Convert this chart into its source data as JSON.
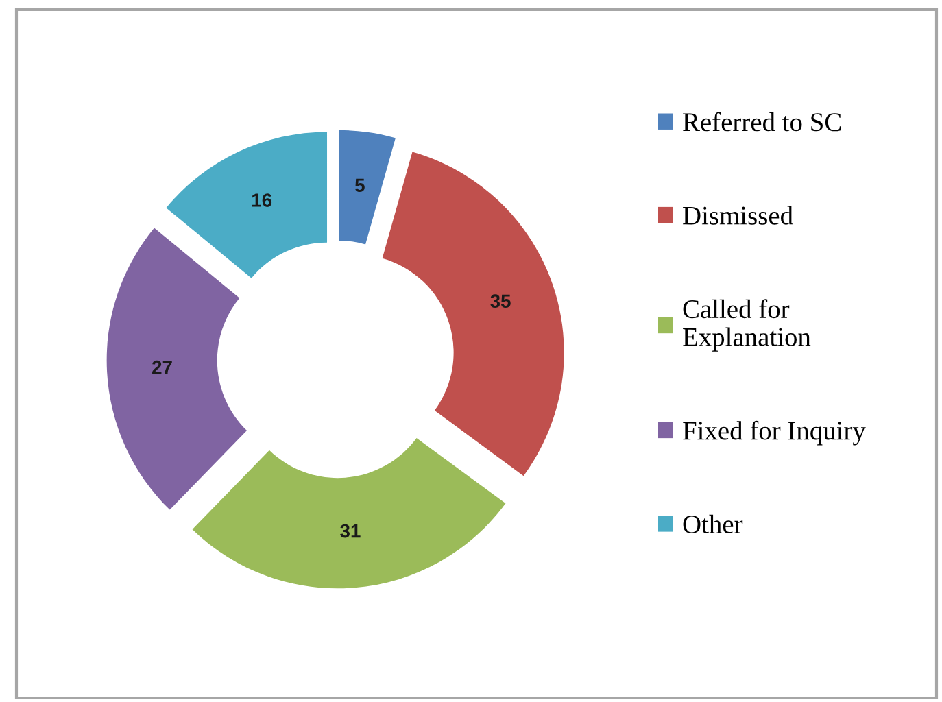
{
  "chart_data": {
    "type": "donut",
    "categories": [
      "Referred to SC",
      "Dismissed",
      "Called for\nExplanation",
      "Fixed for Inquiry",
      "Other"
    ],
    "values": [
      5,
      35,
      31,
      27,
      16
    ],
    "colors": [
      "#4f81bd",
      "#c0504d",
      "#9bbb59",
      "#8064a2",
      "#4bacc6"
    ],
    "data_labels": true,
    "legend": "right"
  }
}
